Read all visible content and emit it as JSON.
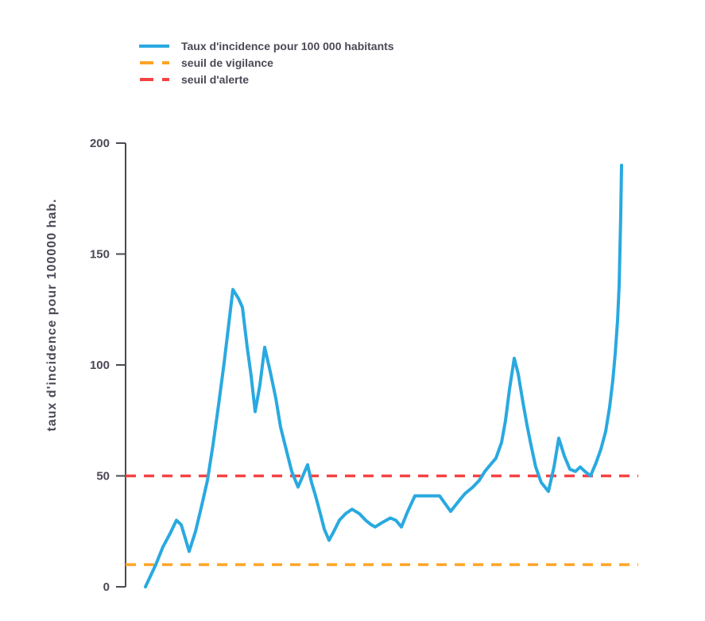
{
  "chart_data": {
    "type": "line",
    "title": "",
    "xlabel": "",
    "ylabel": "taux d'incidence pour 100000 hab.",
    "ylim": [
      0,
      200
    ],
    "yticks": [
      0,
      50,
      100,
      150,
      200
    ],
    "x_axis_labels": "none",
    "grid": false,
    "legend_position": "top-left",
    "legend": [
      {
        "label": "Taux d'incidence pour 100 000 habitants",
        "color": "#29a9e0",
        "line_style": "solid"
      },
      {
        "label": "seuil de vigilance",
        "color": "#ffa426",
        "line_style": "dashed"
      },
      {
        "label": "seuil d'alerte",
        "color": "#f54242",
        "line_style": "dashed"
      }
    ],
    "thresholds": [
      {
        "name": "seuil de vigilance",
        "value": 10,
        "color": "#ffa426"
      },
      {
        "name": "seuil d'alerte",
        "value": 50,
        "color": "#f54242"
      }
    ],
    "series": [
      {
        "name": "Taux d'incidence pour 100 000 habitants",
        "color": "#29a9e0",
        "points_format": "[x_position_px, incidence_per_100000]",
        "points": [
          [
            183,
            0
          ],
          [
            196,
            10
          ],
          [
            205,
            18
          ],
          [
            214,
            24
          ],
          [
            222,
            30
          ],
          [
            228,
            28
          ],
          [
            238,
            16
          ],
          [
            246,
            25
          ],
          [
            254,
            37
          ],
          [
            261,
            48
          ],
          [
            268,
            64
          ],
          [
            275,
            82
          ],
          [
            282,
            101
          ],
          [
            288,
            119
          ],
          [
            293,
            134
          ],
          [
            300,
            130
          ],
          [
            305,
            126
          ],
          [
            311,
            108
          ],
          [
            316,
            95
          ],
          [
            321,
            79
          ],
          [
            327,
            91
          ],
          [
            333,
            108
          ],
          [
            340,
            97
          ],
          [
            347,
            85
          ],
          [
            353,
            72
          ],
          [
            360,
            62
          ],
          [
            367,
            52
          ],
          [
            375,
            45
          ],
          [
            387,
            55
          ],
          [
            392,
            47
          ],
          [
            397,
            41
          ],
          [
            403,
            33
          ],
          [
            408,
            26
          ],
          [
            414,
            21
          ],
          [
            420,
            25
          ],
          [
            427,
            30
          ],
          [
            435,
            33
          ],
          [
            443,
            35
          ],
          [
            452,
            33
          ],
          [
            460,
            30
          ],
          [
            467,
            28
          ],
          [
            472,
            27
          ],
          [
            481,
            29
          ],
          [
            491,
            31
          ],
          [
            498,
            30
          ],
          [
            505,
            27
          ],
          [
            513,
            34
          ],
          [
            522,
            41
          ],
          [
            553,
            41
          ],
          [
            567,
            34
          ],
          [
            578,
            39
          ],
          [
            585,
            42
          ],
          [
            595,
            45
          ],
          [
            603,
            48
          ],
          [
            610,
            52
          ],
          [
            617,
            55
          ],
          [
            624,
            58
          ],
          [
            631,
            65
          ],
          [
            636,
            75
          ],
          [
            641,
            89
          ],
          [
            647,
            103
          ],
          [
            652,
            96
          ],
          [
            658,
            83
          ],
          [
            663,
            73
          ],
          [
            668,
            64
          ],
          [
            674,
            54
          ],
          [
            681,
            47
          ],
          [
            690,
            43
          ],
          [
            697,
            54
          ],
          [
            703,
            67
          ],
          [
            710,
            59
          ],
          [
            717,
            53
          ],
          [
            724,
            52
          ],
          [
            730,
            54
          ],
          [
            736,
            52
          ],
          [
            743,
            50
          ],
          [
            750,
            56
          ],
          [
            756,
            62
          ],
          [
            762,
            70
          ],
          [
            767,
            81
          ],
          [
            771,
            93
          ],
          [
            774,
            105
          ],
          [
            777,
            120
          ],
          [
            779,
            136
          ],
          [
            780,
            152
          ],
          [
            781,
            168
          ],
          [
            782,
            190
          ]
        ]
      }
    ],
    "colors": {
      "axis": "#4a4a52",
      "text": "#4d4856",
      "background": "#ffffff"
    }
  }
}
